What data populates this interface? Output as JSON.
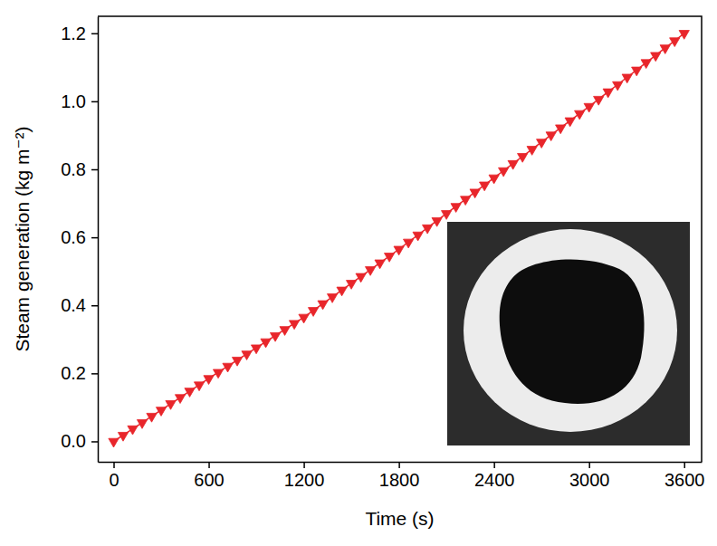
{
  "chart_data": {
    "type": "line",
    "x_label": "Time (s)",
    "y_label": "Steam generation (kg m⁻²)",
    "x": [
      0,
      60,
      120,
      180,
      240,
      300,
      360,
      420,
      480,
      540,
      600,
      660,
      720,
      780,
      840,
      900,
      960,
      1020,
      1080,
      1140,
      1200,
      1260,
      1320,
      1380,
      1440,
      1500,
      1560,
      1620,
      1680,
      1740,
      1800,
      1860,
      1920,
      1980,
      2040,
      2100,
      2160,
      2220,
      2280,
      2340,
      2400,
      2460,
      2520,
      2580,
      2640,
      2700,
      2760,
      2820,
      2880,
      2940,
      3000,
      3060,
      3120,
      3180,
      3240,
      3300,
      3360,
      3420,
      3480,
      3540,
      3600
    ],
    "values": [
      0,
      0.018,
      0.037,
      0.055,
      0.074,
      0.092,
      0.111,
      0.129,
      0.148,
      0.166,
      0.185,
      0.203,
      0.221,
      0.239,
      0.257,
      0.275,
      0.293,
      0.311,
      0.329,
      0.347,
      0.365,
      0.385,
      0.405,
      0.425,
      0.445,
      0.465,
      0.485,
      0.505,
      0.525,
      0.545,
      0.565,
      0.586,
      0.607,
      0.628,
      0.649,
      0.67,
      0.691,
      0.712,
      0.733,
      0.754,
      0.775,
      0.796,
      0.817,
      0.838,
      0.859,
      0.88,
      0.901,
      0.922,
      0.943,
      0.964,
      0.985,
      1.006,
      1.028,
      1.049,
      1.071,
      1.092,
      1.114,
      1.135,
      1.157,
      1.178,
      1.2
    ],
    "color": "#e8262b",
    "marker": "triangle-down",
    "line_style": "solid",
    "xlim": [
      -100,
      3710
    ],
    "ylim": [
      -0.06,
      1.25
    ],
    "xticks": [
      0,
      600,
      1200,
      1800,
      2400,
      3000,
      3600
    ],
    "yticks": [
      {
        "value": 0,
        "label": "0.0"
      },
      {
        "value": 0.2,
        "label": "0.2"
      },
      {
        "value": 0.4,
        "label": "0.4"
      },
      {
        "value": 0.6,
        "label": "0.6"
      },
      {
        "value": 0.8,
        "label": "0.8"
      },
      {
        "value": 1.0,
        "label": "1.0"
      },
      {
        "value": 1.2,
        "label": "1.2"
      }
    ],
    "grid": false
  }
}
